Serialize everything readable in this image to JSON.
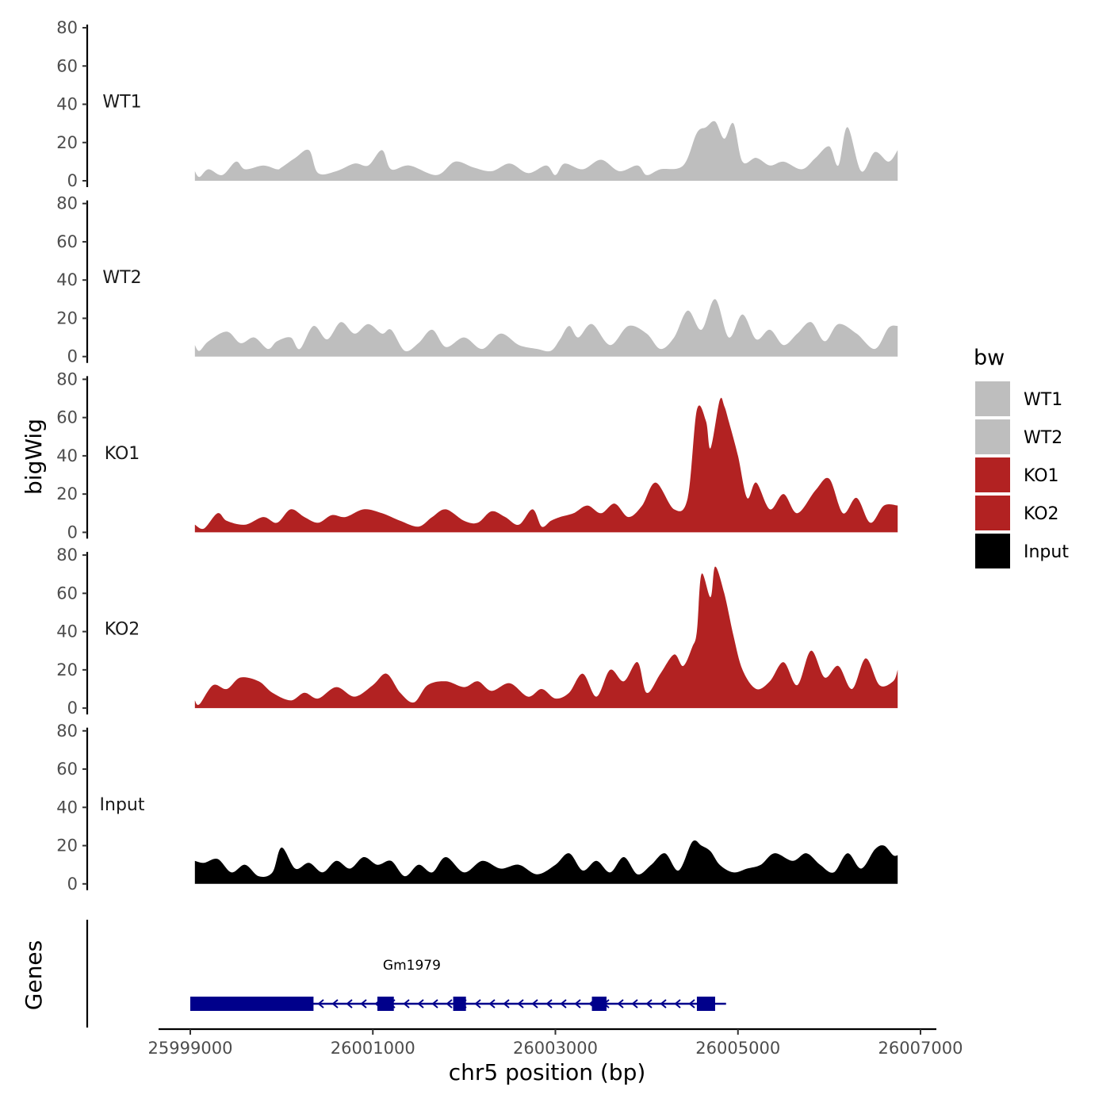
{
  "chart_data": {
    "type": "area",
    "ylabel": "bigWig",
    "xlabel": "chr5 position (bp)",
    "x_range": [
      25999000,
      26006700
    ],
    "ylim": [
      0,
      80
    ],
    "y_ticks": [
      0,
      20,
      40,
      60,
      80
    ],
    "x_ticks": [
      25999000,
      26001000,
      26003000,
      26005000,
      26007000
    ],
    "x_tick_labels": [
      "25999000",
      "26001000",
      "26003000",
      "26005000",
      "26007000"
    ],
    "legend": {
      "title": "bw",
      "position": "right",
      "entries": [
        {
          "label": "WT1",
          "color": "#bebebe"
        },
        {
          "label": "WT2",
          "color": "#bebebe"
        },
        {
          "label": "KO1",
          "color": "#b22222"
        },
        {
          "label": "KO2",
          "color": "#b22222"
        },
        {
          "label": "Input",
          "color": "#000000"
        }
      ]
    },
    "series": [
      {
        "name": "WT1",
        "color": "#bebebe",
        "x": [
          25999050,
          25999100,
          25999200,
          25999350,
          25999500,
          25999600,
          25999800,
          25999950,
          26000000,
          26000150,
          26000300,
          26000400,
          26000600,
          26000800,
          26000950,
          26001100,
          26001200,
          26001400,
          26001700,
          26001900,
          26002100,
          26002300,
          26002500,
          26002700,
          26002900,
          26003000,
          26003100,
          26003300,
          26003500,
          26003700,
          26003900,
          26004000,
          26004150,
          26004400,
          26004550,
          26004650,
          26004750,
          26004850,
          26004950,
          26005050,
          26005200,
          26005350,
          26005500,
          26005700,
          26005850,
          26006000,
          26006100,
          26006200,
          26006350,
          26006500,
          26006650,
          26006750
        ],
        "y": [
          5,
          2,
          6,
          3,
          10,
          6,
          8,
          6,
          7,
          12,
          16,
          4,
          5,
          9,
          8,
          16,
          6,
          8,
          3,
          10,
          7,
          5,
          9,
          4,
          8,
          3,
          9,
          6,
          11,
          5,
          8,
          3,
          6,
          8,
          25,
          28,
          31,
          22,
          30,
          10,
          12,
          8,
          10,
          6,
          12,
          18,
          8,
          28,
          5,
          15,
          10,
          16
        ]
      },
      {
        "name": "WT2",
        "color": "#bebebe",
        "x": [
          25999050,
          25999100,
          25999200,
          25999400,
          25999550,
          25999700,
          25999850,
          25999950,
          26000100,
          26000200,
          26000350,
          26000500,
          26000650,
          26000800,
          26000950,
          26001100,
          26001200,
          26001350,
          26001500,
          26001650,
          26001800,
          26002000,
          26002200,
          26002400,
          26002600,
          26002800,
          26002950,
          26003050,
          26003150,
          26003250,
          26003400,
          26003600,
          26003800,
          26004000,
          26004150,
          26004300,
          26004450,
          26004600,
          26004750,
          26004900,
          26005050,
          26005200,
          26005350,
          26005500,
          26005650,
          26005800,
          26005950,
          26006100,
          26006300,
          26006500,
          26006650,
          26006750
        ],
        "y": [
          6,
          3,
          8,
          13,
          7,
          10,
          4,
          8,
          10,
          4,
          16,
          9,
          18,
          12,
          17,
          12,
          14,
          3,
          7,
          14,
          5,
          10,
          4,
          12,
          6,
          4,
          3,
          9,
          16,
          10,
          17,
          6,
          16,
          12,
          4,
          10,
          24,
          14,
          30,
          10,
          22,
          9,
          14,
          6,
          12,
          18,
          8,
          17,
          12,
          4,
          15,
          16
        ]
      },
      {
        "name": "KO1",
        "color": "#b22222",
        "x": [
          25999050,
          25999150,
          25999300,
          25999400,
          25999600,
          25999800,
          25999950,
          26000100,
          26000250,
          26000400,
          26000550,
          26000700,
          26000900,
          26001100,
          26001300,
          26001500,
          26001650,
          26001800,
          26002000,
          26002150,
          26002300,
          26002450,
          26002600,
          26002750,
          26002850,
          26002950,
          26003050,
          26003200,
          26003350,
          26003500,
          26003650,
          26003800,
          26003950,
          26004100,
          26004300,
          26004450,
          26004550,
          26004650,
          26004700,
          26004800,
          26004850,
          26004900,
          26005000,
          26005100,
          26005200,
          26005350,
          26005500,
          26005650,
          26005850,
          26006000,
          26006150,
          26006300,
          26006450,
          26006600,
          26006750
        ],
        "y": [
          4,
          2,
          10,
          6,
          4,
          8,
          5,
          12,
          8,
          5,
          9,
          8,
          12,
          10,
          6,
          3,
          8,
          12,
          6,
          5,
          11,
          8,
          4,
          12,
          3,
          6,
          8,
          10,
          14,
          10,
          15,
          8,
          14,
          26,
          12,
          18,
          64,
          58,
          44,
          69,
          66,
          58,
          40,
          18,
          26,
          12,
          20,
          10,
          22,
          28,
          10,
          18,
          5,
          14,
          14
        ]
      },
      {
        "name": "KO2",
        "color": "#b22222",
        "x": [
          25999050,
          25999100,
          25999250,
          25999400,
          25999550,
          25999750,
          25999900,
          26000100,
          26000250,
          26000400,
          26000600,
          26000800,
          26001000,
          26001150,
          26001300,
          26001450,
          26001600,
          26001800,
          26002000,
          26002150,
          26002300,
          26002500,
          26002700,
          26002850,
          26003000,
          26003150,
          26003300,
          26003450,
          26003600,
          26003750,
          26003900,
          26004000,
          26004150,
          26004300,
          26004400,
          26004500,
          26004550,
          26004600,
          26004700,
          26004750,
          26004850,
          26004950,
          26005050,
          26005200,
          26005350,
          26005500,
          26005650,
          26005800,
          26005950,
          26006100,
          26006250,
          26006400,
          26006550,
          26006700,
          26006750
        ],
        "y": [
          4,
          2,
          12,
          10,
          16,
          14,
          8,
          4,
          8,
          5,
          11,
          6,
          12,
          18,
          8,
          3,
          12,
          14,
          11,
          14,
          9,
          13,
          6,
          10,
          5,
          8,
          18,
          6,
          20,
          14,
          24,
          8,
          18,
          28,
          22,
          32,
          40,
          70,
          58,
          74,
          60,
          38,
          20,
          10,
          14,
          24,
          12,
          30,
          16,
          22,
          10,
          26,
          12,
          14,
          20
        ]
      },
      {
        "name": "Input",
        "color": "#000000",
        "x": [
          25999050,
          25999150,
          25999300,
          25999450,
          25999600,
          25999750,
          25999900,
          26000000,
          26000150,
          26000300,
          26000450,
          26000600,
          26000750,
          26000900,
          26001050,
          26001200,
          26001350,
          26001500,
          26001650,
          26001800,
          26002000,
          26002200,
          26002400,
          26002600,
          26002800,
          26003000,
          26003150,
          26003300,
          26003450,
          26003600,
          26003750,
          26003900,
          26004050,
          26004200,
          26004350,
          26004500,
          26004600,
          26004700,
          26004800,
          26004950,
          26005100,
          26005250,
          26005400,
          26005600,
          26005750,
          26005900,
          26006050,
          26006200,
          26006350,
          26006500,
          26006600,
          26006700,
          26006750
        ],
        "y": [
          12,
          11,
          13,
          6,
          10,
          4,
          6,
          19,
          8,
          11,
          6,
          12,
          8,
          14,
          10,
          12,
          4,
          10,
          6,
          14,
          6,
          12,
          8,
          10,
          5,
          10,
          16,
          7,
          12,
          6,
          14,
          5,
          10,
          16,
          7,
          22,
          20,
          17,
          10,
          6,
          8,
          10,
          16,
          12,
          16,
          10,
          6,
          16,
          8,
          18,
          20,
          15,
          15
        ]
      }
    ],
    "genes_track": {
      "ylabel": "Genes",
      "gene_name": "Gm1979",
      "color": "#00008b",
      "strand": "-",
      "start": 25999000,
      "end": 26004800,
      "exons": [
        [
          25999000,
          26000350
        ],
        [
          26001050,
          26001230
        ],
        [
          26001880,
          26002020
        ],
        [
          26003400,
          26003560
        ],
        [
          26004550,
          26004750
        ]
      ]
    }
  }
}
